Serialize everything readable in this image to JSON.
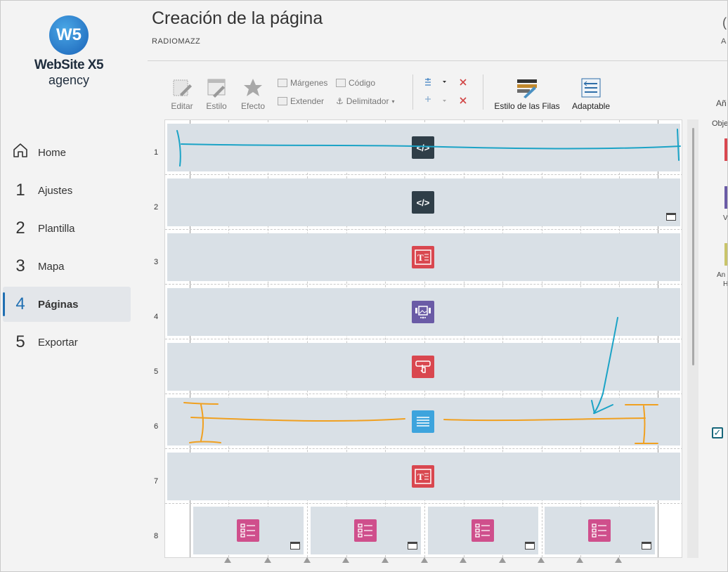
{
  "app": {
    "logo_mark": "W5",
    "logo_title": "WebSite X5",
    "logo_sub": "agency"
  },
  "sidebar": {
    "items": [
      {
        "num": "",
        "label": "Home",
        "icon": "home-icon"
      },
      {
        "num": "1",
        "label": "Ajustes"
      },
      {
        "num": "2",
        "label": "Plantilla"
      },
      {
        "num": "3",
        "label": "Mapa"
      },
      {
        "num": "4",
        "label": "Páginas",
        "active": true
      },
      {
        "num": "5",
        "label": "Exportar"
      }
    ]
  },
  "header": {
    "title": "Creación de la página",
    "subtitle": "RADIOMAZZ",
    "edge_glyph": "(",
    "edge_text": "A"
  },
  "toolbar": {
    "editar": "Editar",
    "estilo": "Estilo",
    "efecto": "Efecto",
    "margenes": "Márgenes",
    "codigo": "Código",
    "extender": "Extender",
    "delimitador": "Delimitador",
    "estilo_filas": "Estilo de las Filas",
    "adaptable": "Adaptable"
  },
  "grid": {
    "rows": [
      "1",
      "2",
      "3",
      "4",
      "5",
      "6",
      "7",
      "8"
    ],
    "obj_labels": {
      "code": "</>",
      "text": "T"
    }
  },
  "right_panel": {
    "title_fragment": "Añ",
    "section_fragment": "Obje",
    "item_fragments": [
      "V",
      "An",
      "H"
    ],
    "checkbox_checked": true
  },
  "colors": {
    "accent": "#1f6fb2",
    "row_bg": "#d9e0e6",
    "annotation_blue": "#1ba3c6",
    "annotation_orange": "#f0a020"
  }
}
